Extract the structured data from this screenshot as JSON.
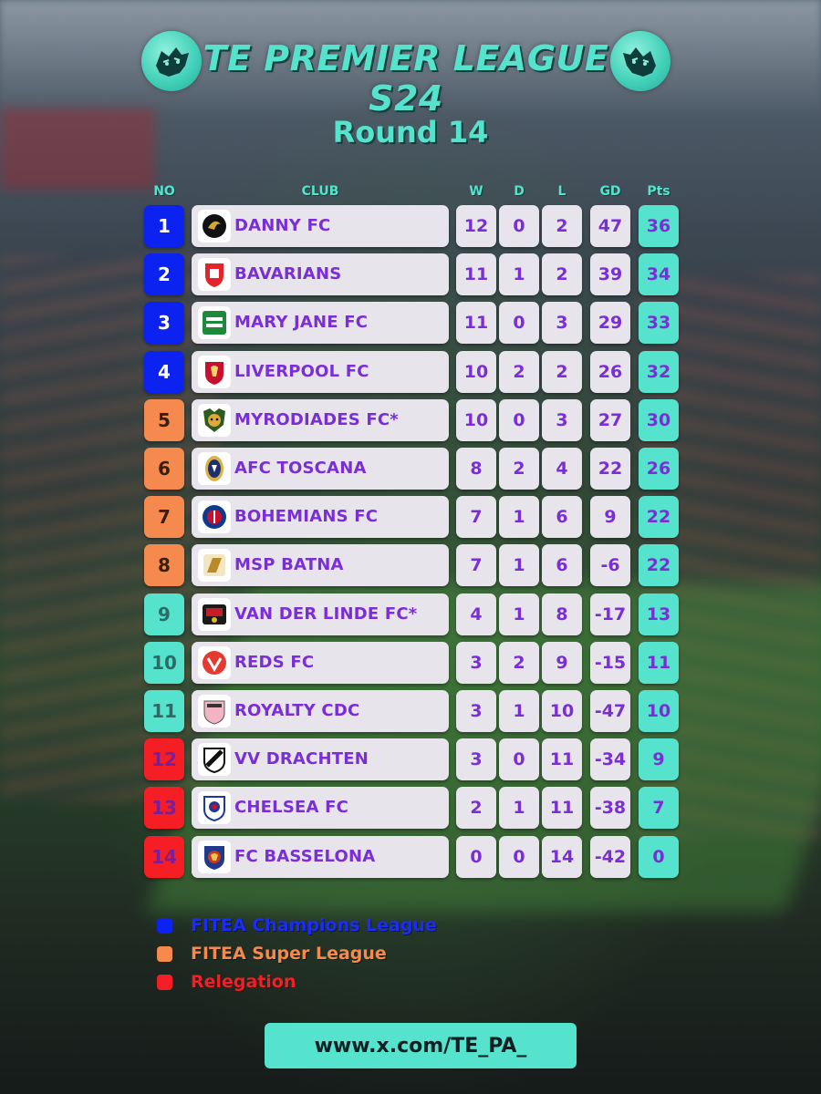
{
  "header": {
    "title": "TE PREMIER LEAGUE S24",
    "logo_icon": "tiger-icon",
    "round": "Round 14"
  },
  "columns": {
    "no": "NO",
    "club": "CLUB",
    "w": "W",
    "d": "D",
    "l": "L",
    "gd": "GD",
    "pts": "Pts"
  },
  "colors": {
    "champions": "#0c22f0",
    "super_league": "#f68a4e",
    "mid": "#55e3cd",
    "relegation": "#f51e24",
    "accent": "#55e3cd",
    "text_purple": "#7a2fd6"
  },
  "standings": [
    {
      "no": "1",
      "zone": "cl",
      "club": "DANNY FC",
      "badge": "eagle-crest-icon",
      "w": "12",
      "d": "0",
      "l": "2",
      "gd": "47",
      "pts": "36"
    },
    {
      "no": "2",
      "zone": "cl",
      "club": "BAVARIANS",
      "badge": "red-shield-icon",
      "w": "11",
      "d": "1",
      "l": "2",
      "gd": "39",
      "pts": "34"
    },
    {
      "no": "3",
      "zone": "cl",
      "club": "MARY JANE FC",
      "badge": "green-fields-icon",
      "w": "11",
      "d": "0",
      "l": "3",
      "gd": "29",
      "pts": "33"
    },
    {
      "no": "4",
      "zone": "cl",
      "club": "LIVERPOOL FC",
      "badge": "liverbird-crest-icon",
      "w": "10",
      "d": "2",
      "l": "2",
      "gd": "26",
      "pts": "32"
    },
    {
      "no": "5",
      "zone": "sl",
      "club": "MYRODIADES FC*",
      "badge": "jaguar-crest-icon",
      "w": "10",
      "d": "0",
      "l": "3",
      "gd": "27",
      "pts": "30"
    },
    {
      "no": "6",
      "zone": "sl",
      "club": "AFC TOSCANA",
      "badge": "oval-crest-icon",
      "w": "8",
      "d": "2",
      "l": "4",
      "gd": "22",
      "pts": "26"
    },
    {
      "no": "7",
      "zone": "sl",
      "club": "BOHEMIANS FC",
      "badge": "round-crest-icon",
      "w": "7",
      "d": "1",
      "l": "6",
      "gd": "9",
      "pts": "22"
    },
    {
      "no": "8",
      "zone": "sl",
      "club": "MSP BATNA",
      "badge": "gold-cf-icon",
      "w": "7",
      "d": "1",
      "l": "6",
      "gd": "-6",
      "pts": "22"
    },
    {
      "no": "9",
      "zone": "mid",
      "club": "VAN DER LINDE FC*",
      "badge": "black-red-crest-icon",
      "w": "4",
      "d": "1",
      "l": "8",
      "gd": "-17",
      "pts": "13"
    },
    {
      "no": "10",
      "zone": "mid",
      "club": "REDS FC",
      "badge": "red-v-icon",
      "w": "3",
      "d": "2",
      "l": "9",
      "gd": "-15",
      "pts": "11"
    },
    {
      "no": "11",
      "zone": "mid",
      "club": "ROYALTY CDC",
      "badge": "pink-shield-icon",
      "w": "3",
      "d": "1",
      "l": "10",
      "gd": "-47",
      "pts": "10"
    },
    {
      "no": "12",
      "zone": "rel",
      "club": "VV DRACHTEN",
      "badge": "bw-shield-icon",
      "w": "3",
      "d": "0",
      "l": "11",
      "gd": "-34",
      "pts": "9"
    },
    {
      "no": "13",
      "zone": "rel",
      "club": "CHELSEA FC",
      "badge": "blue-shield-icon",
      "w": "2",
      "d": "1",
      "l": "11",
      "gd": "-38",
      "pts": "7"
    },
    {
      "no": "14",
      "zone": "rel",
      "club": "FC BASSELONA",
      "badge": "lion-shield-icon",
      "w": "0",
      "d": "0",
      "l": "14",
      "gd": "-42",
      "pts": "0"
    }
  ],
  "legend": [
    {
      "label": "FITEA Champions League",
      "color": "#0c22f0"
    },
    {
      "label": "FITEA Super League",
      "color": "#f68a4e"
    },
    {
      "label": "Relegation",
      "color": "#f51e24"
    }
  ],
  "footer": {
    "url": "www.x.com/TE_PA_"
  }
}
